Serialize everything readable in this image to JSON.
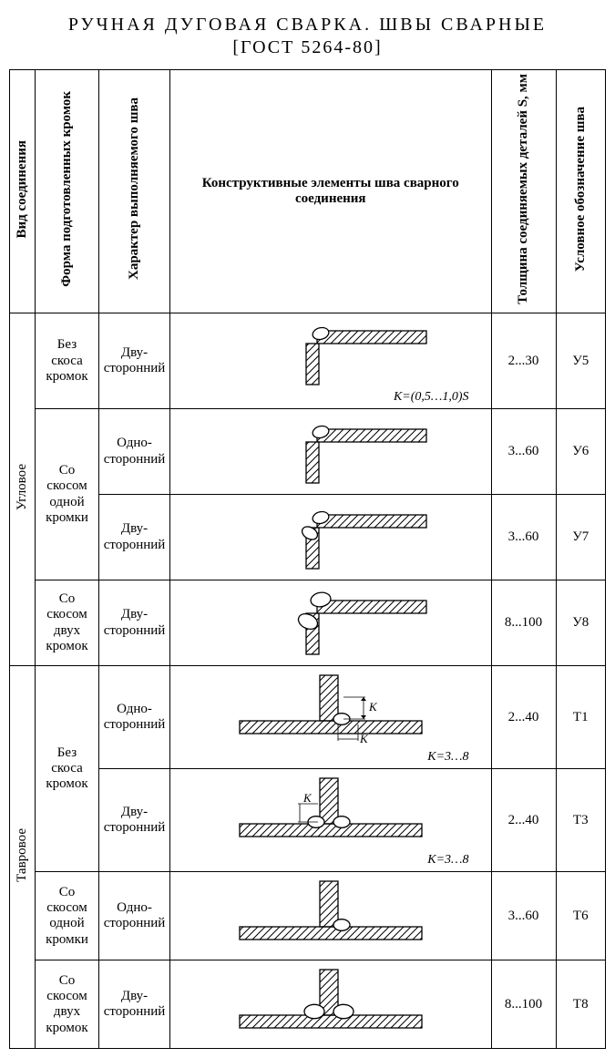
{
  "title": "РУЧНАЯ ДУГОВАЯ СВАРКА. ШВЫ СВАРНЫЕ",
  "subtitle": "[ГОСТ 5264-80]",
  "headers": {
    "joint_type": "Вид соединения",
    "edge_form": "Форма подготовленных кромок",
    "weld_char": "Характер выполняемого шва",
    "diagram": "Конструктивные элементы шва сварного соединения",
    "thickness": "Толщина соединяемых деталей S, мм",
    "designation": "Условное обозначение шва"
  },
  "groups": [
    {
      "joint_type": "Угловое",
      "forms": [
        {
          "form": "Без скоса кромок",
          "rows": [
            {
              "char": "Дву-сторонний",
              "thickness": "2...30",
              "designation": "У5",
              "annot": "K=(0,5…1,0)S",
              "svg": "corner_nobevel_double"
            }
          ]
        },
        {
          "form": "Со скосом одной кромки",
          "rows": [
            {
              "char": "Одно-сторонний",
              "thickness": "3...60",
              "designation": "У6",
              "annot": "",
              "svg": "corner_onebevel_single"
            },
            {
              "char": "Дву-сторонний",
              "thickness": "3...60",
              "designation": "У7",
              "annot": "",
              "svg": "corner_onebevel_double"
            }
          ]
        },
        {
          "form": "Со скосом двух кромок",
          "rows": [
            {
              "char": "Дву-сторонний",
              "thickness": "8...100",
              "designation": "У8",
              "annot": "",
              "svg": "corner_twobevel_double"
            }
          ]
        }
      ]
    },
    {
      "joint_type": "Тавровое",
      "forms": [
        {
          "form": "Без скоса кромок",
          "rows": [
            {
              "char": "Одно-сторонний",
              "thickness": "2...40",
              "designation": "Т1",
              "annot": "K=3…8",
              "svg": "tee_nobevel_single"
            },
            {
              "char": "Дву-сторонний",
              "thickness": "2...40",
              "designation": "Т3",
              "annot": "K=3…8",
              "svg": "tee_nobevel_double"
            }
          ]
        },
        {
          "form": "Со скосом одной кромки",
          "rows": [
            {
              "char": "Одно-сторонний",
              "thickness": "3...60",
              "designation": "Т6",
              "annot": "",
              "svg": "tee_onebevel_single"
            }
          ]
        },
        {
          "form": "Со скосом двух кромок",
          "rows": [
            {
              "char": "Дву-сторонний",
              "thickness": "8...100",
              "designation": "Т8",
              "annot": "",
              "svg": "tee_twobevel_double"
            }
          ]
        }
      ]
    }
  ],
  "style": {
    "hatch_stroke": "#000000",
    "stroke_w": 1.3,
    "weld_fill": "#ffffff",
    "weld_stroke": "#000000",
    "bg": "#ffffff",
    "text_color": "#000000",
    "font": "Times New Roman"
  }
}
